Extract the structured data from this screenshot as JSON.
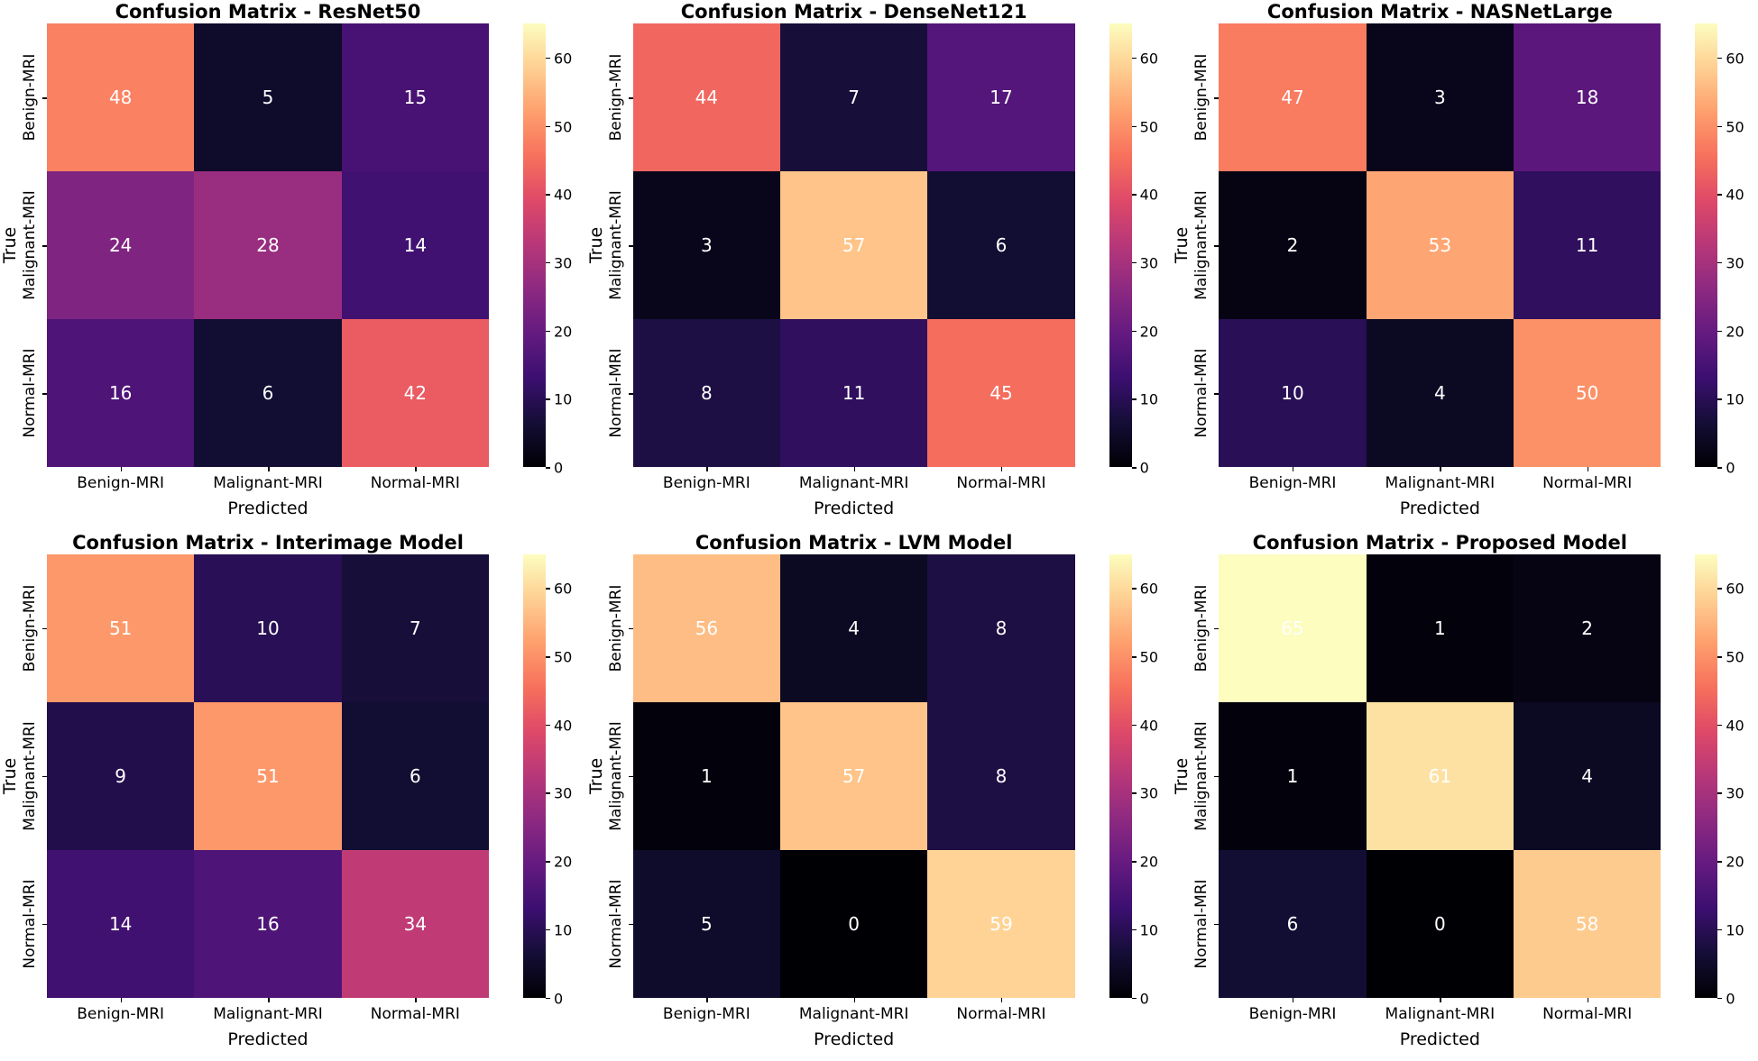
{
  "style": {
    "background": "#ffffff",
    "text_color": "#000000",
    "tick_color": "#000000",
    "annotation_color": "#ffffff",
    "colorbar_position": "right",
    "magma_anchors": [
      "#000004",
      "#140e36",
      "#3b0f70",
      "#641a80",
      "#8c2981",
      "#b73779",
      "#de4968",
      "#f7705c",
      "#fe9f6d",
      "#fecf92",
      "#fcfdbf"
    ]
  },
  "chart_data": [
    {
      "type": "heatmap",
      "title": "Confusion Matrix - ResNet50",
      "xlabel": "Predicted",
      "ylabel": "True",
      "x_categories": [
        "Benign-MRI",
        "Malignant-MRI",
        "Normal-MRI"
      ],
      "y_categories": [
        "Benign-MRI",
        "Malignant-MRI",
        "Normal-MRI"
      ],
      "matrix": [
        [
          48,
          5,
          15
        ],
        [
          24,
          28,
          14
        ],
        [
          16,
          6,
          42
        ]
      ],
      "vmin": 0,
      "vmax": 65,
      "colormap": "magma",
      "colorbar_ticks": [
        0,
        10,
        20,
        30,
        40,
        50,
        60
      ]
    },
    {
      "type": "heatmap",
      "title": "Confusion Matrix - DenseNet121",
      "xlabel": "Predicted",
      "ylabel": "True",
      "x_categories": [
        "Benign-MRI",
        "Malignant-MRI",
        "Normal-MRI"
      ],
      "y_categories": [
        "Benign-MRI",
        "Malignant-MRI",
        "Normal-MRI"
      ],
      "matrix": [
        [
          44,
          7,
          17
        ],
        [
          3,
          57,
          6
        ],
        [
          8,
          11,
          45
        ]
      ],
      "vmin": 0,
      "vmax": 65,
      "colormap": "magma",
      "colorbar_ticks": [
        0,
        10,
        20,
        30,
        40,
        50,
        60
      ]
    },
    {
      "type": "heatmap",
      "title": "Confusion Matrix - NASNetLarge",
      "xlabel": "Predicted",
      "ylabel": "True",
      "x_categories": [
        "Benign-MRI",
        "Malignant-MRI",
        "Normal-MRI"
      ],
      "y_categories": [
        "Benign-MRI",
        "Malignant-MRI",
        "Normal-MRI"
      ],
      "matrix": [
        [
          47,
          3,
          18
        ],
        [
          2,
          53,
          11
        ],
        [
          10,
          4,
          50
        ]
      ],
      "vmin": 0,
      "vmax": 65,
      "colormap": "magma",
      "colorbar_ticks": [
        0,
        10,
        20,
        30,
        40,
        50,
        60
      ]
    },
    {
      "type": "heatmap",
      "title": "Confusion Matrix - Interimage Model",
      "xlabel": "Predicted",
      "ylabel": "True",
      "x_categories": [
        "Benign-MRI",
        "Malignant-MRI",
        "Normal-MRI"
      ],
      "y_categories": [
        "Benign-MRI",
        "Malignant-MRI",
        "Normal-MRI"
      ],
      "matrix": [
        [
          51,
          10,
          7
        ],
        [
          9,
          51,
          6
        ],
        [
          14,
          16,
          34
        ]
      ],
      "vmin": 0,
      "vmax": 65,
      "colormap": "magma",
      "colorbar_ticks": [
        0,
        10,
        20,
        30,
        40,
        50,
        60
      ]
    },
    {
      "type": "heatmap",
      "title": "Confusion Matrix - LVM Model",
      "xlabel": "Predicted",
      "ylabel": "True",
      "x_categories": [
        "Benign-MRI",
        "Malignant-MRI",
        "Normal-MRI"
      ],
      "y_categories": [
        "Benign-MRI",
        "Malignant-MRI",
        "Normal-MRI"
      ],
      "matrix": [
        [
          56,
          4,
          8
        ],
        [
          1,
          57,
          8
        ],
        [
          5,
          0,
          59
        ]
      ],
      "vmin": 0,
      "vmax": 65,
      "colormap": "magma",
      "colorbar_ticks": [
        0,
        10,
        20,
        30,
        40,
        50,
        60
      ]
    },
    {
      "type": "heatmap",
      "title": "Confusion Matrix - Proposed Model",
      "xlabel": "Predicted",
      "ylabel": "True",
      "x_categories": [
        "Benign-MRI",
        "Malignant-MRI",
        "Normal-MRI"
      ],
      "y_categories": [
        "Benign-MRI",
        "Malignant-MRI",
        "Normal-MRI"
      ],
      "matrix": [
        [
          65,
          1,
          2
        ],
        [
          1,
          61,
          4
        ],
        [
          6,
          0,
          58
        ]
      ],
      "vmin": 0,
      "vmax": 65,
      "colormap": "magma",
      "colorbar_ticks": [
        0,
        10,
        20,
        30,
        40,
        50,
        60
      ]
    }
  ]
}
